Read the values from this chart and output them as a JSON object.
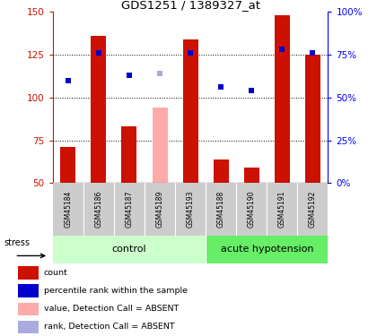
{
  "title": "GDS1251 / 1389327_at",
  "samples": [
    "GSM45184",
    "GSM45186",
    "GSM45187",
    "GSM45189",
    "GSM45193",
    "GSM45188",
    "GSM45190",
    "GSM45191",
    "GSM45192"
  ],
  "count_values": [
    71,
    136,
    83,
    null,
    134,
    64,
    59,
    148,
    125
  ],
  "count_absent": [
    null,
    null,
    null,
    94,
    null,
    null,
    null,
    null,
    null
  ],
  "rank_values": [
    110,
    126,
    113,
    null,
    126,
    106,
    104,
    128,
    126
  ],
  "rank_absent": [
    null,
    null,
    null,
    114,
    null,
    null,
    null,
    null,
    null
  ],
  "ylim_left": [
    50,
    150
  ],
  "ylim_right": [
    0,
    100
  ],
  "yticks_left": [
    50,
    75,
    100,
    125,
    150
  ],
  "yticks_right": [
    0,
    25,
    50,
    75,
    100
  ],
  "ytick_labels_left": [
    "50",
    "75",
    "100",
    "125",
    "150"
  ],
  "ytick_labels_right": [
    "0%",
    "25%",
    "50%",
    "75%",
    "100%"
  ],
  "hlines": [
    75,
    100,
    125
  ],
  "group_control": [
    0,
    1,
    2,
    3,
    4
  ],
  "group_acute": [
    5,
    6,
    7,
    8
  ],
  "group_control_label": "control",
  "group_acute_label": "acute hypotension",
  "stress_label": "stress",
  "bar_color_present": "#cc1100",
  "bar_color_absent": "#ffaaaa",
  "dot_color_present": "#0000cc",
  "dot_color_absent": "#aaaadd",
  "group_bg_control": "#ccffcc",
  "group_bg_acute": "#66ee66",
  "sample_bg": "#cccccc",
  "legend_items": [
    {
      "color": "#cc1100",
      "label": "count",
      "marker": "s"
    },
    {
      "color": "#0000cc",
      "label": "percentile rank within the sample",
      "marker": "s"
    },
    {
      "color": "#ffaaaa",
      "label": "value, Detection Call = ABSENT",
      "marker": "s"
    },
    {
      "color": "#aaaadd",
      "label": "rank, Detection Call = ABSENT",
      "marker": "s"
    }
  ]
}
